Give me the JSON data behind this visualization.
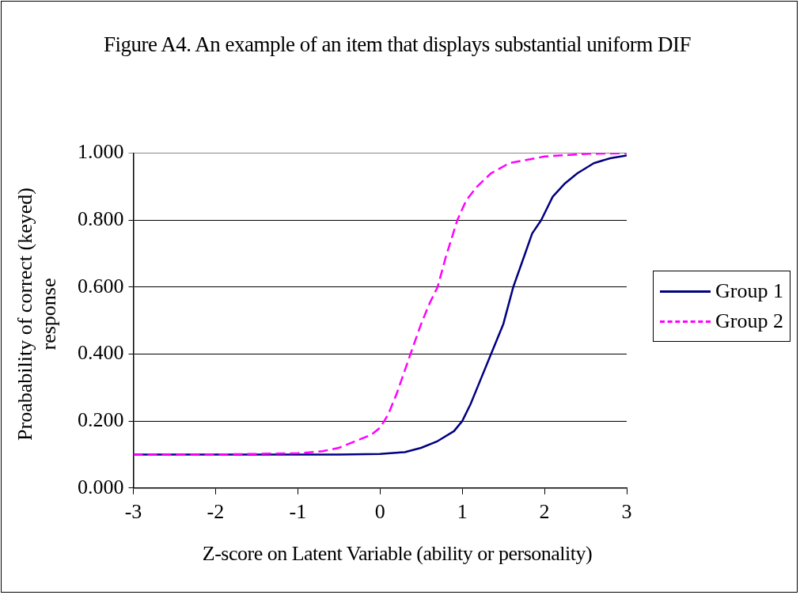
{
  "chart_data": {
    "type": "line",
    "title": "Figure A4. An example of an item that displays substantial uniform DIF",
    "xlabel": "Z-score on Latent Variable (ability or personality)",
    "ylabel": "Proabability of correct (keyed) response",
    "xlim": [
      -3,
      3
    ],
    "xticks": [
      -3,
      -2,
      -1,
      0,
      1,
      2,
      3
    ],
    "ylim": [
      0,
      1
    ],
    "yticks": [
      {
        "value": 0,
        "label": "0.000"
      },
      {
        "value": 0.2,
        "label": "0.200"
      },
      {
        "value": 0.4,
        "label": "0.400"
      },
      {
        "value": 0.6,
        "label": "0.600"
      },
      {
        "value": 0.8,
        "label": "0.800"
      },
      {
        "value": 1,
        "label": "1.000"
      }
    ],
    "grid": "y",
    "legend": "right",
    "marker": "none",
    "series": [
      {
        "name": "Group 1",
        "color": "#000080",
        "line_style": "solid",
        "x": [
          -3,
          -2,
          -1,
          -0.5,
          0,
          0.3,
          0.5,
          0.7,
          0.9,
          1.0,
          1.1,
          1.2,
          1.35,
          1.5,
          1.62,
          1.75,
          1.85,
          1.96,
          2.1,
          2.25,
          2.4,
          2.6,
          2.8,
          3
        ],
        "values": [
          0.1,
          0.1,
          0.1,
          0.1,
          0.102,
          0.107,
          0.12,
          0.14,
          0.17,
          0.2,
          0.25,
          0.31,
          0.4,
          0.49,
          0.6,
          0.69,
          0.76,
          0.8,
          0.87,
          0.91,
          0.94,
          0.97,
          0.985,
          0.993
        ]
      },
      {
        "name": "Group 2",
        "color": "#ff00ff",
        "line_style": "dashed",
        "x": [
          -3,
          -2,
          -1.5,
          -1,
          -0.7,
          -0.5,
          -0.3,
          -0.1,
          0,
          0.1,
          0.2,
          0.3,
          0.37,
          0.5,
          0.6,
          0.7,
          0.8,
          0.94,
          1.05,
          1.18,
          1.35,
          1.57,
          2,
          2.5,
          3
        ],
        "values": [
          0.1,
          0.1,
          0.102,
          0.104,
          0.11,
          0.12,
          0.14,
          0.16,
          0.18,
          0.22,
          0.28,
          0.35,
          0.4,
          0.49,
          0.55,
          0.6,
          0.69,
          0.8,
          0.86,
          0.9,
          0.94,
          0.97,
          0.99,
          0.998,
          1.0
        ]
      }
    ]
  }
}
